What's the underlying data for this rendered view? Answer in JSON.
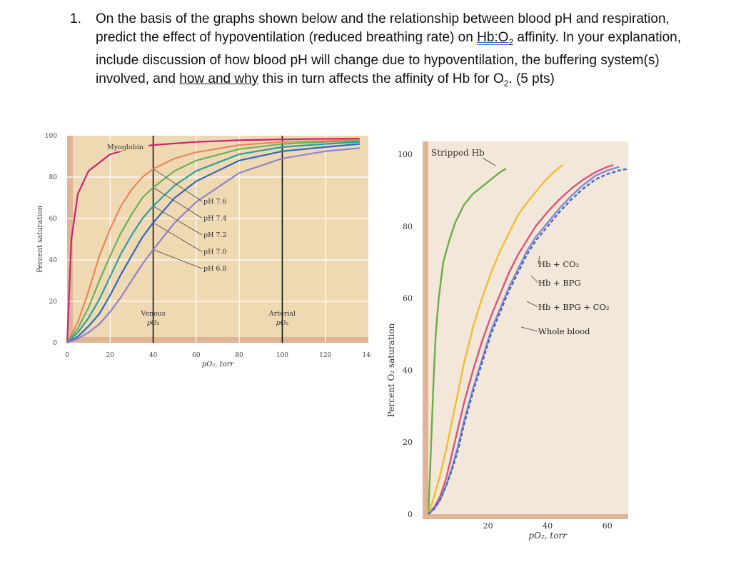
{
  "question": {
    "number": "1.",
    "p1": "On the basis of the graphs shown below and the relationship between blood pH and respiration, predict the effect of hypoventilation (reduced breathing rate) on ",
    "hb_o2_a": "Hb:O",
    "hb_o2_sub": "2",
    "p2": " affinity. In your explanation, include discussion of how blood pH will change due to hypoventilation, the buffering system(s) involved, and ",
    "how_and_why": "how and why",
    "p3": " this in turn affects the affinity of Hb for O",
    "o2_sub": "2",
    "p4": ". (5 pts)"
  },
  "colors": {
    "plot_bg": "#efd9b2",
    "plot_bg_right": "#f2e7d8",
    "axis_bar": "#e0b597",
    "myoglobin": "#c8266e",
    "ph76": "#e8875a",
    "ph74": "#6db05a",
    "ph72": "#2a9fa0",
    "ph70": "#2f68c0",
    "ph68": "#8f84c8",
    "stripped": "#6aac48",
    "hb_co2": "#f0bd33",
    "hb_bpg": "#d8567a",
    "hb_bpg_co2": "#8c86c8",
    "whole_blood": "#3a6ac8"
  },
  "chart_data": [
    {
      "type": "line",
      "xlabel": "pO₂, torr",
      "ylabel": "Percent saturation",
      "xlim": [
        0,
        140
      ],
      "ylim": [
        0,
        100
      ],
      "xticks": [
        "0",
        "20",
        "40",
        "60",
        "80",
        "100",
        "120",
        "140"
      ],
      "yticks": [
        "0",
        "20",
        "40",
        "60",
        "80",
        "100"
      ],
      "series": [
        {
          "name": "Myoglobin",
          "x": [
            0,
            2,
            5,
            10,
            20,
            30,
            40,
            60,
            80,
            100,
            120,
            136
          ],
          "y": [
            0,
            50,
            72,
            83,
            91,
            94,
            95.5,
            97,
            97.8,
            98.2,
            98.5,
            98.6
          ]
        },
        {
          "name": "pH 7.6",
          "x": [
            0,
            5,
            10,
            15,
            20,
            25,
            30,
            35,
            40,
            50,
            60,
            80,
            100,
            120,
            136
          ],
          "y": [
            0,
            10,
            25,
            42,
            55,
            66,
            74,
            80,
            84,
            89,
            92,
            95.5,
            97,
            97.5,
            98
          ]
        },
        {
          "name": "pH 7.4",
          "x": [
            0,
            5,
            10,
            15,
            20,
            25,
            30,
            35,
            40,
            50,
            60,
            80,
            100,
            120,
            136
          ],
          "y": [
            0,
            7,
            17,
            30,
            42,
            53,
            62,
            70,
            75,
            83,
            88,
            93.5,
            96,
            97,
            97.6
          ]
        },
        {
          "name": "pH 7.2",
          "x": [
            0,
            5,
            10,
            15,
            20,
            25,
            30,
            35,
            40,
            50,
            60,
            80,
            100,
            120,
            136
          ],
          "y": [
            0,
            5,
            12,
            21,
            32,
            43,
            52,
            60,
            66,
            76,
            83,
            91,
            94.5,
            96,
            97
          ]
        },
        {
          "name": "pH 7.0",
          "x": [
            0,
            5,
            10,
            15,
            20,
            25,
            30,
            35,
            40,
            50,
            60,
            80,
            100,
            120,
            136
          ],
          "y": [
            0,
            3,
            8,
            14,
            23,
            33,
            42,
            51,
            58,
            70,
            78,
            88,
            92.5,
            94.5,
            96
          ]
        },
        {
          "name": "pH 6.8",
          "x": [
            0,
            5,
            10,
            15,
            20,
            25,
            30,
            35,
            40,
            50,
            60,
            80,
            100,
            120,
            136
          ],
          "y": [
            0,
            2,
            5,
            9,
            15,
            22,
            30,
            38,
            45,
            58,
            68,
            82,
            89,
            92.5,
            94
          ]
        }
      ],
      "annotations": [
        "Myoglobin",
        "pH 7.6",
        "pH 7.4",
        "pH 7.2",
        "pH 7.0",
        "pH 6.8"
      ],
      "venous": {
        "label": "Venous",
        "sublabel": "pO₂",
        "x": 40
      },
      "arterial": {
        "label": "Arterial",
        "sublabel": "pO₂",
        "x": 100
      }
    },
    {
      "type": "line",
      "xlabel": "pO₂, torr",
      "ylabel": "Percent O₂ saturation",
      "xlim": [
        0,
        67
      ],
      "ylim": [
        0,
        100
      ],
      "xticks": [
        "20",
        "40",
        "60"
      ],
      "yticks": [
        "0",
        "20",
        "40",
        "60",
        "80",
        "100"
      ],
      "series": [
        {
          "name": "Stripped Hb",
          "x": [
            0,
            0.6,
            1.2,
            1.8,
            2.5,
            3.5,
            5,
            7,
            9,
            12,
            15,
            18,
            21,
            24,
            26
          ],
          "y": [
            0,
            12,
            25,
            38,
            50,
            60,
            70,
            76,
            81,
            86,
            89,
            91,
            93,
            95,
            96
          ]
        },
        {
          "name": "Hb + CO₂",
          "x": [
            0,
            2,
            4,
            6,
            8,
            10,
            12,
            15,
            18,
            21,
            24,
            27,
            30,
            33,
            36,
            39,
            42,
            45
          ],
          "y": [
            0,
            5,
            11,
            18,
            26,
            34,
            42,
            52,
            60,
            67,
            73,
            78,
            83,
            86.5,
            89.5,
            92.5,
            95,
            97
          ]
        },
        {
          "name": "Hb + BPG",
          "x": [
            0,
            2,
            4,
            6,
            8,
            10,
            12,
            15,
            18,
            21,
            24,
            27,
            30,
            33,
            36,
            40,
            44,
            48,
            52,
            56,
            60,
            62
          ],
          "y": [
            0,
            2,
            5,
            10,
            17,
            24,
            31,
            40,
            48,
            55,
            61,
            67,
            72,
            76,
            80,
            84,
            87.5,
            90.5,
            93,
            95,
            96.5,
            97
          ]
        },
        {
          "name": "Hb + BPG + CO₂",
          "x": [
            0,
            2,
            4,
            6,
            8,
            10,
            12,
            15,
            18,
            21,
            24,
            27,
            30,
            33,
            36,
            40,
            44,
            48,
            52,
            56,
            60,
            64
          ],
          "y": [
            0,
            1.5,
            4,
            8,
            13,
            19,
            26,
            35,
            43,
            51,
            57,
            63,
            68,
            73,
            77,
            81,
            85,
            88.5,
            91.5,
            94,
            95.5,
            96.5
          ]
        },
        {
          "name": "Whole blood",
          "dashed": true,
          "x": [
            0,
            2,
            4,
            6,
            8,
            10,
            12,
            15,
            18,
            21,
            24,
            27,
            30,
            33,
            36,
            40,
            44,
            48,
            52,
            56,
            60,
            64,
            67
          ],
          "y": [
            0,
            1.5,
            4,
            8,
            12.5,
            18,
            25,
            34,
            42,
            50,
            56,
            62,
            67,
            72,
            76,
            80,
            84,
            87.5,
            90.5,
            93,
            94.5,
            95.5,
            96
          ]
        }
      ],
      "annotations": [
        "Stripped Hb",
        "Hb + CO₂",
        "Hb + BPG",
        "Hb + BPG + CO₂",
        "Whole blood"
      ]
    }
  ]
}
